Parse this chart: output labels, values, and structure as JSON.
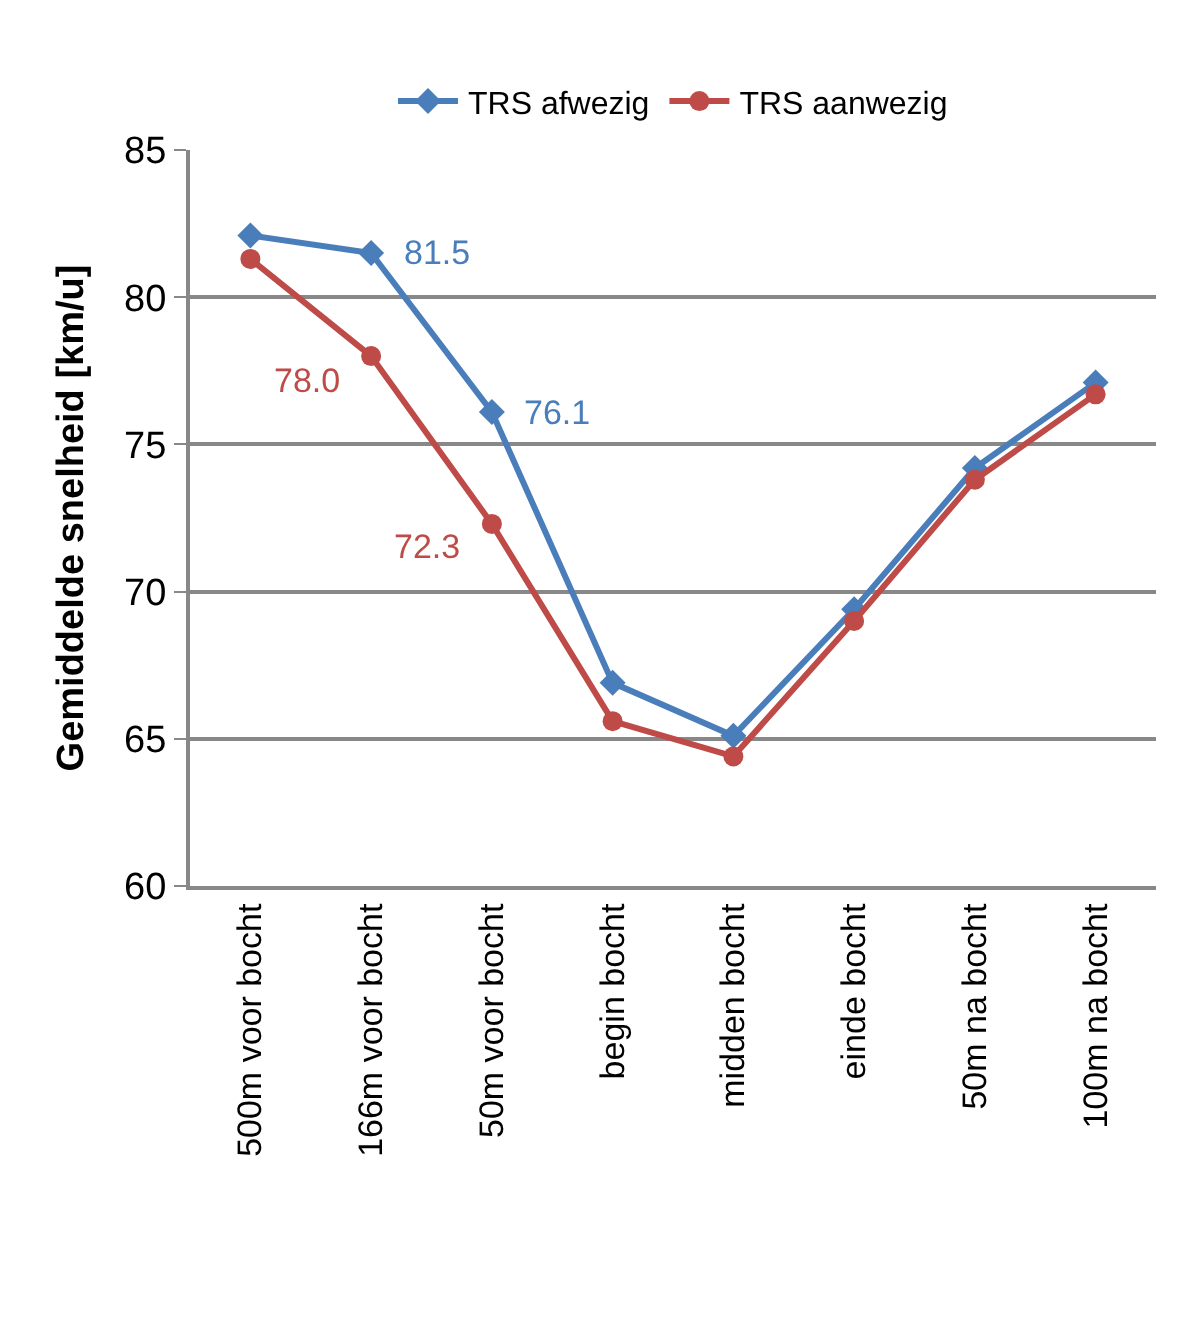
{
  "chart_data": {
    "type": "line",
    "ylabel": "Gemiddelde snelheid [km/u]",
    "categories": [
      "500m voor bocht",
      "166m voor bocht",
      "50m voor bocht",
      "begin bocht",
      "midden bocht",
      "einde bocht",
      "50m na bocht",
      "100m na bocht"
    ],
    "series": [
      {
        "name": "TRS afwezig",
        "color": "#4a7ebb",
        "marker": "diamond",
        "values": [
          82.1,
          81.5,
          76.1,
          66.9,
          65.1,
          69.4,
          74.2,
          77.1
        ],
        "value_labels": [
          null,
          "81.5",
          "76.1",
          null,
          null,
          null,
          null,
          null
        ]
      },
      {
        "name": "TRS aanwezig",
        "color": "#be4b48",
        "marker": "circle",
        "values": [
          81.3,
          78.0,
          72.3,
          65.6,
          64.4,
          69.0,
          73.8,
          76.7
        ],
        "value_labels": [
          null,
          "78.0",
          "72.3",
          null,
          null,
          null,
          null,
          null
        ]
      }
    ],
    "ylim": [
      60,
      85
    ],
    "yticks": [
      60,
      65,
      70,
      75,
      80,
      85
    ],
    "grid": "y",
    "legend": "top",
    "line_style": "solid"
  }
}
